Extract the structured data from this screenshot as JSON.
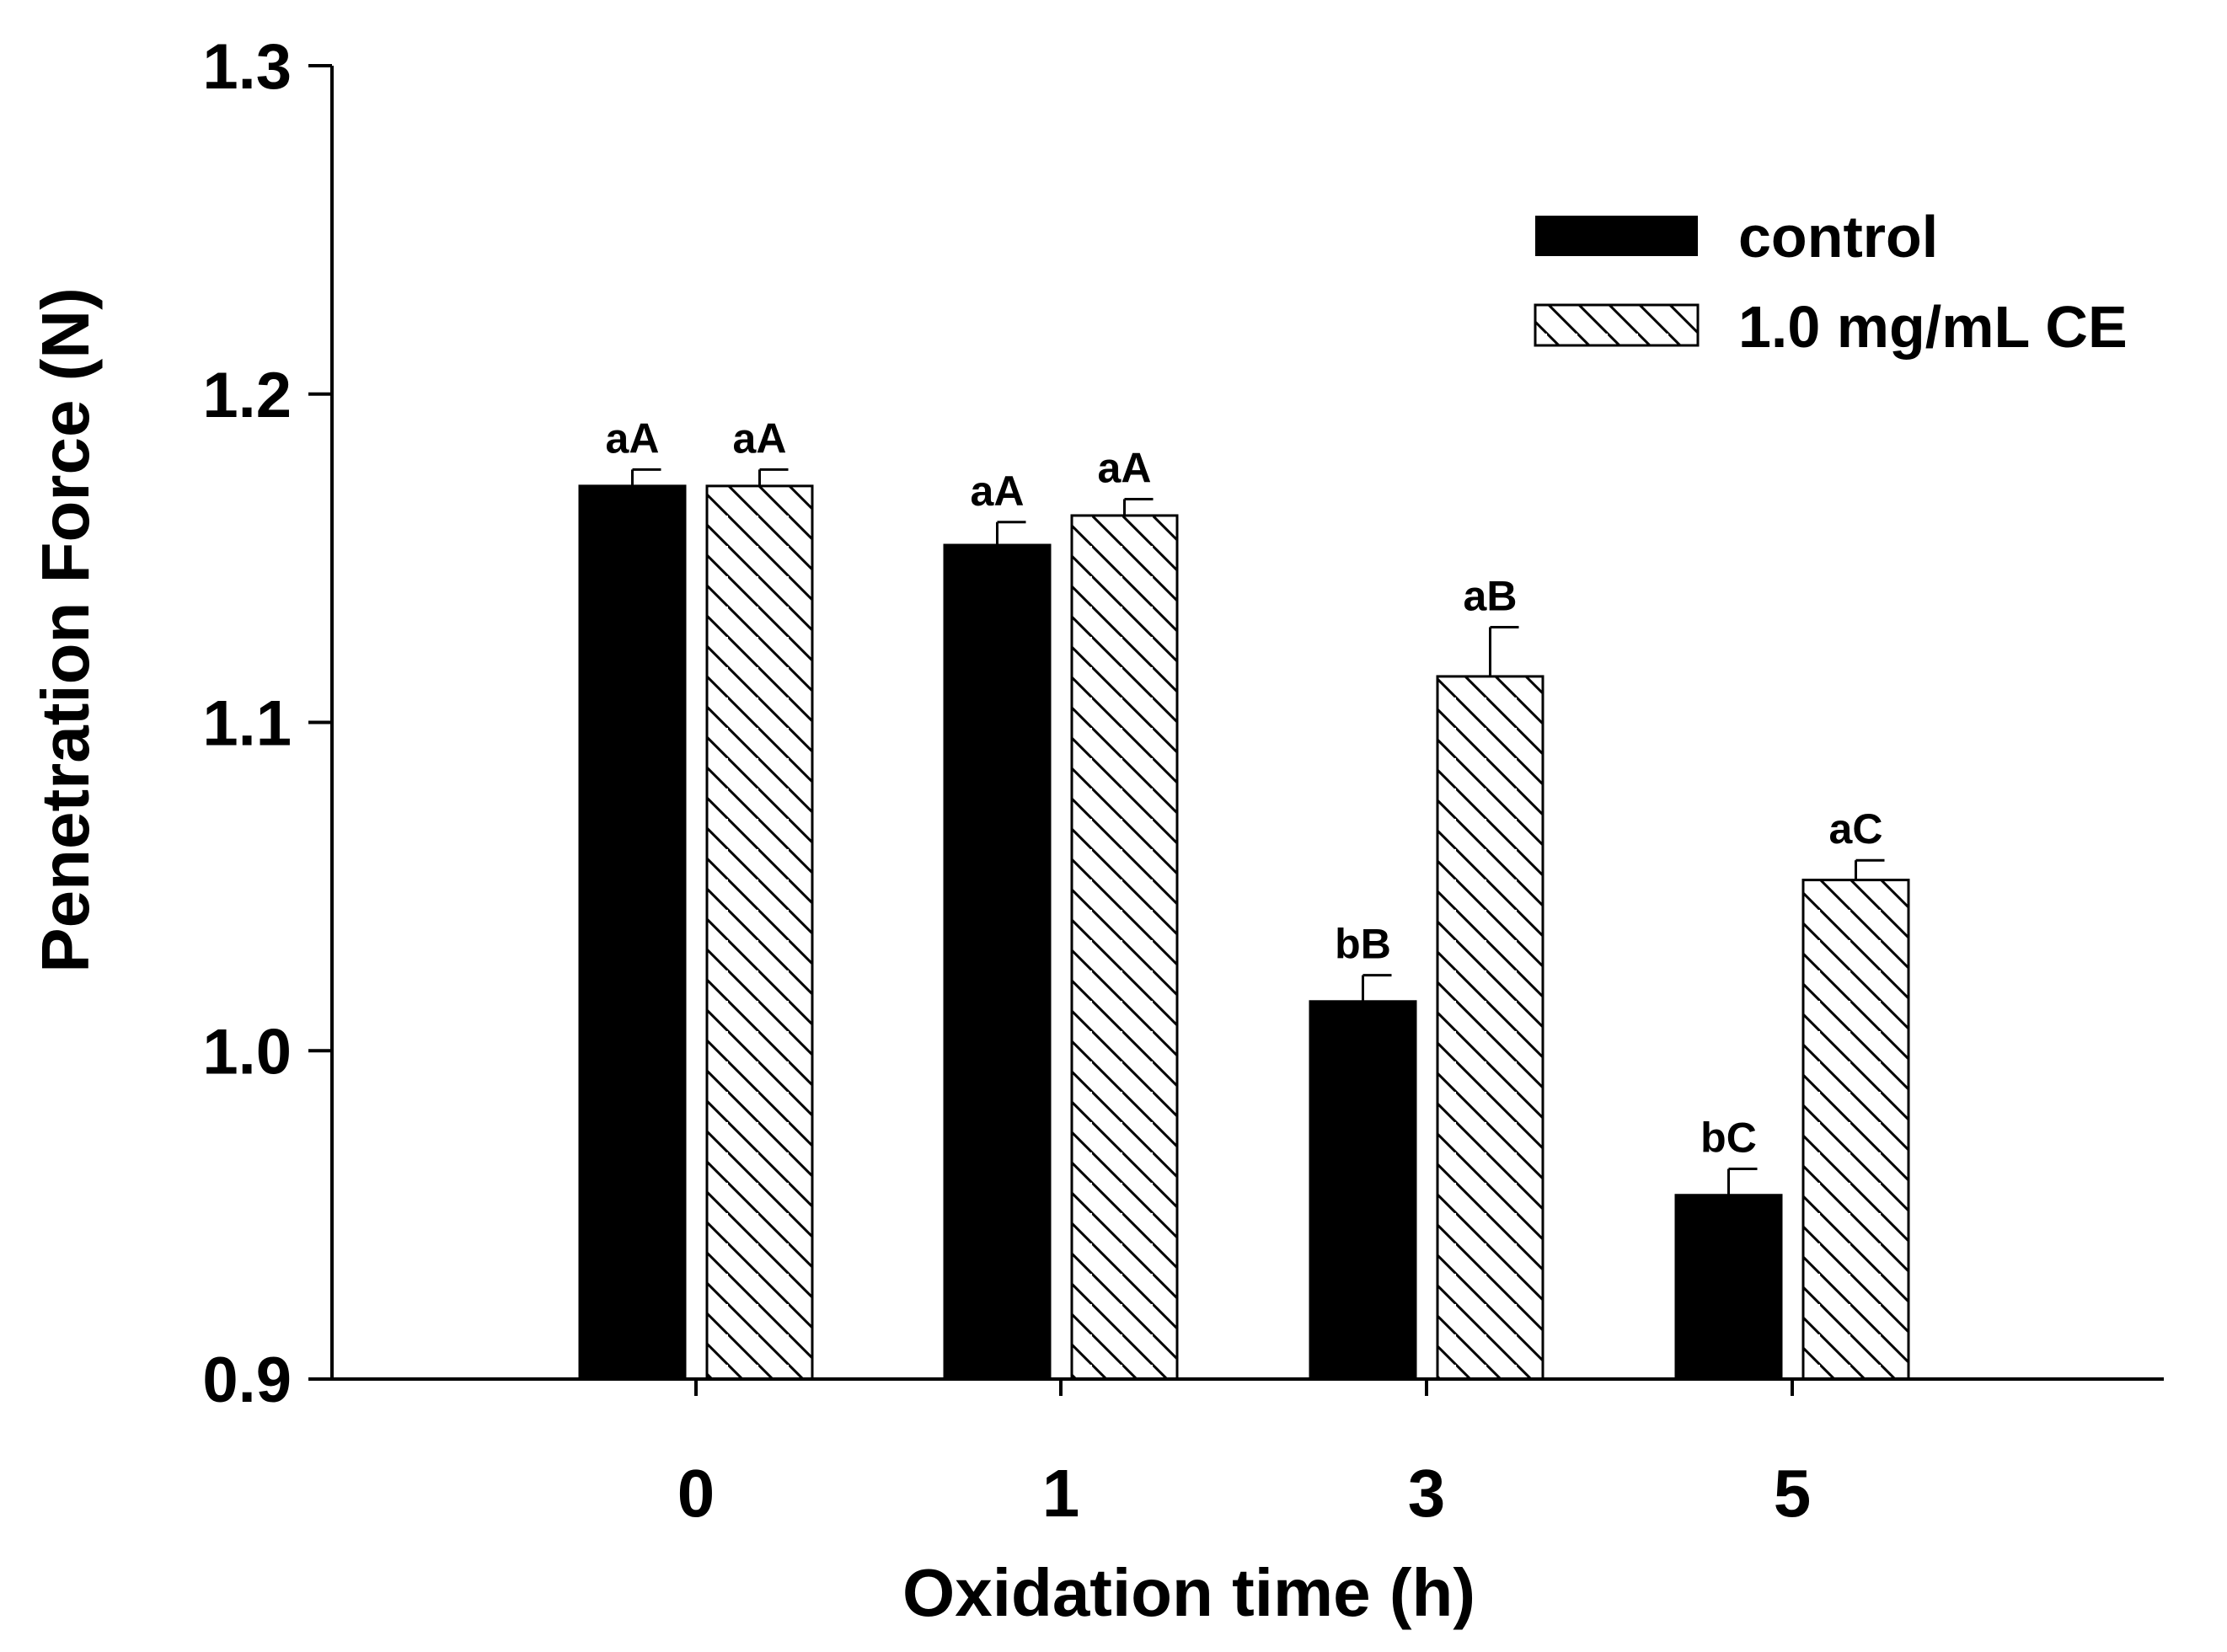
{
  "chart_data": {
    "type": "bar",
    "title": "",
    "xlabel": "Oxidation time (h)",
    "ylabel": "Penetration Force (N)",
    "ylim": [
      0.9,
      1.3
    ],
    "yticks": [
      "0.9",
      "1.0",
      "1.1",
      "1.2",
      "1.3"
    ],
    "categories": [
      "0",
      "1",
      "3",
      "5"
    ],
    "grid": false,
    "legend_position": "top-right",
    "series": [
      {
        "name": "control",
        "style": "solid",
        "color": "#000000",
        "values": [
          1.172,
          1.154,
          1.015,
          0.956
        ],
        "errors": [
          0.005,
          0.007,
          0.008,
          0.008
        ],
        "labels": [
          "aA",
          "aA",
          "bB",
          "bC"
        ]
      },
      {
        "name": "1.0 mg/mL CE",
        "style": "hatched",
        "color": "#000000",
        "values": [
          1.172,
          1.163,
          1.114,
          1.052
        ],
        "errors": [
          0.005,
          0.005,
          0.015,
          0.006
        ],
        "labels": [
          "aA",
          "aA",
          "aB",
          "aC"
        ]
      }
    ]
  }
}
